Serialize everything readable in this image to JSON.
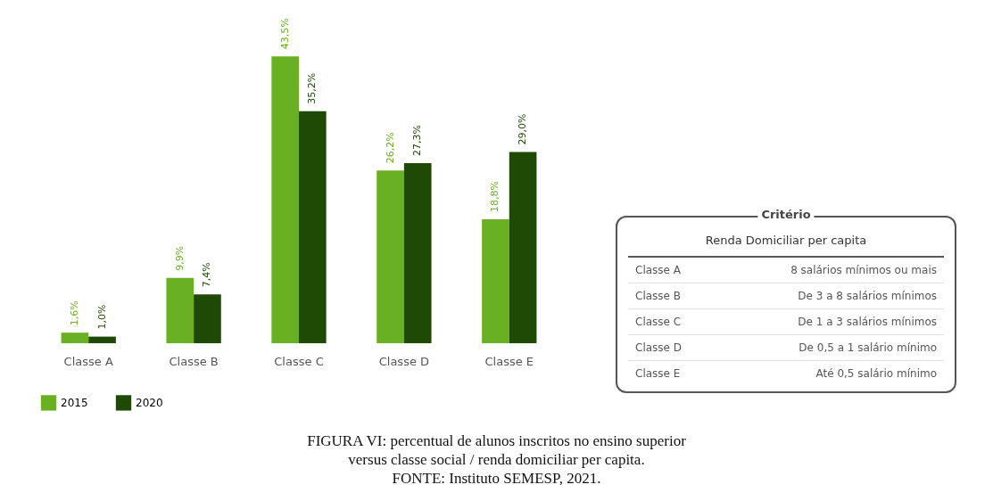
{
  "chart_data": [
    {
      "type": "bar",
      "categories": [
        "Classe A",
        "Classe B",
        "Classe C",
        "Classe D",
        "Classe E"
      ],
      "series": [
        {
          "name": "2015",
          "color": "#6ab023",
          "values": [
            1.6,
            9.9,
            43.5,
            26.2,
            18.8
          ],
          "value_labels": [
            "1,6%",
            "9,9%",
            "43,5%",
            "26,2%",
            "18,8%"
          ]
        },
        {
          "name": "2020",
          "color": "#1f4a05",
          "values": [
            1.0,
            7.4,
            35.2,
            27.3,
            29.0
          ],
          "value_labels": [
            "1,0%",
            "7,4%",
            "35,2%",
            "27,3%",
            "29,0%"
          ]
        }
      ],
      "legend": "bottom",
      "tick_labels": "x",
      "grid": false,
      "annotations": [
        "FIGURA VI: percentual de alunos inscritos no ensino superior",
        "versus classe social / renda domiciliar per capita.",
        "FONTE: Instituto SEMESP, 2021."
      ]
    },
    {
      "type": "other",
      "title": "Critério",
      "subtitle": "Renda Domiciliar per capita",
      "annotations": [
        "Classe A",
        "8 salários mínimos ou mais",
        "Classe B",
        "De 3 a 8 salários mínimos",
        "Classe C",
        "De 1 a 3 salários mínimos",
        "Classe D",
        "De 0,5 a 1 salário mínimo",
        "Classe E",
        "Até 0,5 salário mínimo"
      ]
    }
  ]
}
